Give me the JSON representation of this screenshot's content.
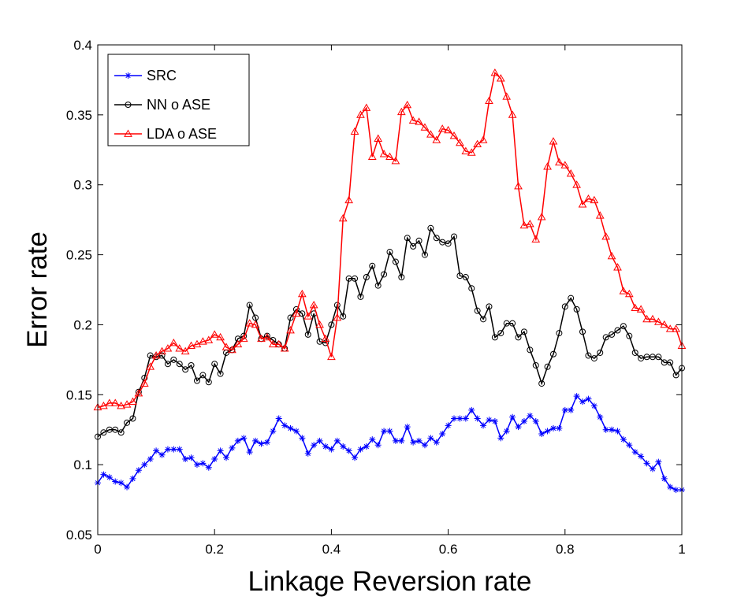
{
  "chart_data": {
    "type": "line",
    "title": "",
    "xlabel": "Linkage Reversion rate",
    "ylabel": "Error rate",
    "xlim": [
      0,
      1
    ],
    "ylim": [
      0.05,
      0.4
    ],
    "xticks": [
      0,
      0.2,
      0.4,
      0.6,
      0.8,
      1
    ],
    "xtick_labels": [
      "0",
      "0.2",
      "0.4",
      "0.6",
      "0.8",
      "1"
    ],
    "yticks": [
      0.05,
      0.1,
      0.15,
      0.2,
      0.25,
      0.3,
      0.35,
      0.4
    ],
    "ytick_labels": [
      "0.05",
      "0.1",
      "0.15",
      "0.2",
      "0.25",
      "0.3",
      "0.35",
      "0.4"
    ],
    "grid": false,
    "legend_position": "top-left",
    "x": [
      0,
      0.01,
      0.02,
      0.03,
      0.04,
      0.05,
      0.06,
      0.07,
      0.08,
      0.09,
      0.1,
      0.11,
      0.12,
      0.13,
      0.14,
      0.15,
      0.16,
      0.17,
      0.18,
      0.19,
      0.2,
      0.21,
      0.22,
      0.23,
      0.24,
      0.25,
      0.26,
      0.27,
      0.28,
      0.29,
      0.3,
      0.31,
      0.32,
      0.33,
      0.34,
      0.35,
      0.36,
      0.37,
      0.38,
      0.39,
      0.4,
      0.41,
      0.42,
      0.43,
      0.44,
      0.45,
      0.46,
      0.47,
      0.48,
      0.49,
      0.5,
      0.51,
      0.52,
      0.53,
      0.54,
      0.55,
      0.56,
      0.57,
      0.58,
      0.59,
      0.6,
      0.61,
      0.62,
      0.63,
      0.64,
      0.65,
      0.66,
      0.67,
      0.68,
      0.69,
      0.7,
      0.71,
      0.72,
      0.73,
      0.74,
      0.75,
      0.76,
      0.77,
      0.78,
      0.79,
      0.8,
      0.81,
      0.82,
      0.83,
      0.84,
      0.85,
      0.86,
      0.87,
      0.88,
      0.89,
      0.9,
      0.91,
      0.92,
      0.93,
      0.94,
      0.95,
      0.96,
      0.97,
      0.98,
      0.99,
      1
    ],
    "series": [
      {
        "name": "SRC",
        "color": "#0000ff",
        "marker": "asterisk",
        "values": [
          0.087,
          0.093,
          0.091,
          0.088,
          0.087,
          0.084,
          0.09,
          0.096,
          0.1,
          0.104,
          0.11,
          0.107,
          0.111,
          0.111,
          0.111,
          0.104,
          0.105,
          0.1,
          0.101,
          0.098,
          0.104,
          0.11,
          0.105,
          0.112,
          0.117,
          0.119,
          0.109,
          0.117,
          0.115,
          0.116,
          0.124,
          0.133,
          0.128,
          0.126,
          0.124,
          0.119,
          0.108,
          0.114,
          0.117,
          0.113,
          0.111,
          0.117,
          0.113,
          0.11,
          0.105,
          0.111,
          0.113,
          0.118,
          0.114,
          0.124,
          0.124,
          0.117,
          0.117,
          0.127,
          0.116,
          0.117,
          0.114,
          0.119,
          0.116,
          0.122,
          0.128,
          0.133,
          0.133,
          0.133,
          0.139,
          0.133,
          0.128,
          0.132,
          0.131,
          0.119,
          0.124,
          0.134,
          0.127,
          0.131,
          0.135,
          0.131,
          0.122,
          0.124,
          0.126,
          0.126,
          0.139,
          0.139,
          0.149,
          0.145,
          0.147,
          0.142,
          0.134,
          0.125,
          0.125,
          0.124,
          0.118,
          0.114,
          0.109,
          0.106,
          0.101,
          0.097,
          0.102,
          0.09,
          0.084,
          0.082,
          0.082
        ]
      },
      {
        "name": "NN o ASE",
        "color": "#000000",
        "marker": "circle",
        "values": [
          0.12,
          0.123,
          0.125,
          0.125,
          0.123,
          0.13,
          0.133,
          0.152,
          0.162,
          0.178,
          0.177,
          0.178,
          0.172,
          0.175,
          0.172,
          0.168,
          0.171,
          0.16,
          0.164,
          0.159,
          0.172,
          0.165,
          0.18,
          0.182,
          0.19,
          0.192,
          0.214,
          0.205,
          0.19,
          0.192,
          0.189,
          0.186,
          0.183,
          0.205,
          0.211,
          0.208,
          0.193,
          0.208,
          0.188,
          0.187,
          0.2,
          0.214,
          0.206,
          0.233,
          0.233,
          0.22,
          0.234,
          0.242,
          0.228,
          0.236,
          0.252,
          0.245,
          0.234,
          0.262,
          0.256,
          0.26,
          0.25,
          0.269,
          0.262,
          0.259,
          0.258,
          0.263,
          0.235,
          0.234,
          0.226,
          0.21,
          0.204,
          0.213,
          0.191,
          0.194,
          0.201,
          0.201,
          0.191,
          0.195,
          0.182,
          0.171,
          0.158,
          0.17,
          0.179,
          0.194,
          0.213,
          0.219,
          0.211,
          0.195,
          0.178,
          0.176,
          0.18,
          0.191,
          0.193,
          0.196,
          0.199,
          0.192,
          0.18,
          0.176,
          0.177,
          0.177,
          0.177,
          0.173,
          0.173,
          0.164,
          0.169
        ]
      },
      {
        "name": "LDA o ASE",
        "color": "#ff0000",
        "marker": "triangle",
        "values": [
          0.141,
          0.142,
          0.144,
          0.144,
          0.142,
          0.143,
          0.145,
          0.151,
          0.158,
          0.17,
          0.178,
          0.181,
          0.183,
          0.187,
          0.183,
          0.181,
          0.185,
          0.186,
          0.188,
          0.189,
          0.193,
          0.191,
          0.184,
          0.182,
          0.186,
          0.19,
          0.201,
          0.2,
          0.19,
          0.191,
          0.186,
          0.186,
          0.183,
          0.196,
          0.208,
          0.222,
          0.206,
          0.214,
          0.2,
          0.19,
          0.177,
          0.205,
          0.276,
          0.289,
          0.338,
          0.35,
          0.355,
          0.32,
          0.333,
          0.322,
          0.32,
          0.317,
          0.352,
          0.357,
          0.346,
          0.345,
          0.341,
          0.336,
          0.332,
          0.34,
          0.339,
          0.335,
          0.33,
          0.324,
          0.323,
          0.329,
          0.332,
          0.36,
          0.38,
          0.376,
          0.363,
          0.35,
          0.299,
          0.271,
          0.272,
          0.261,
          0.277,
          0.313,
          0.331,
          0.316,
          0.314,
          0.308,
          0.3,
          0.286,
          0.29,
          0.289,
          0.278,
          0.263,
          0.249,
          0.241,
          0.224,
          0.222,
          0.212,
          0.211,
          0.204,
          0.204,
          0.202,
          0.2,
          0.197,
          0.197,
          0.185
        ]
      }
    ]
  }
}
